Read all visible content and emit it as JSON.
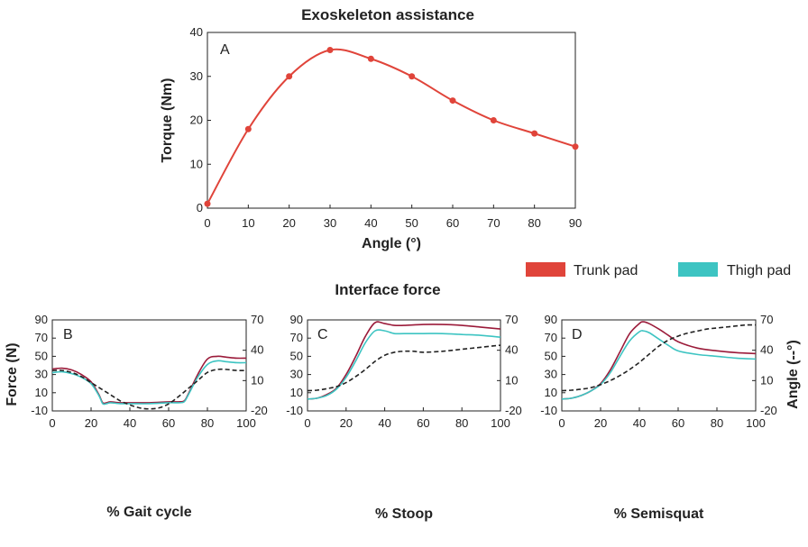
{
  "chart_data": [
    {
      "id": "A",
      "type": "line",
      "title": "Exoskeleton assistance",
      "panel_label": "A",
      "xlabel": "Angle (°)",
      "ylabel": "Torque (Nm)",
      "xlim": [
        0,
        90
      ],
      "ylim": [
        0,
        40
      ],
      "xticks": [
        0,
        10,
        20,
        30,
        40,
        50,
        60,
        70,
        80,
        90
      ],
      "yticks": [
        0,
        10,
        20,
        30,
        40
      ],
      "series": [
        {
          "color": "#e0443a",
          "x": [
            0,
            10,
            20,
            30,
            40,
            50,
            60,
            70,
            80,
            90
          ],
          "y": [
            1,
            18,
            30,
            36,
            34,
            30,
            24.5,
            20,
            17,
            14
          ]
        }
      ]
    },
    {
      "id": "B",
      "type": "line",
      "panel_label": "B",
      "xlabel": "% Gait cycle",
      "ylabel": "Force (N)",
      "xlim": [
        0,
        100
      ],
      "ylim": [
        -10,
        90
      ],
      "y2lim": [
        -20,
        70
      ],
      "xticks": [
        0,
        20,
        40,
        60,
        80,
        100
      ],
      "yticks": [
        -10,
        10,
        30,
        50,
        70,
        90
      ],
      "y2ticks": [
        -20,
        10,
        40,
        70
      ],
      "series": [
        {
          "color": "#9b1b3a",
          "x": [
            0,
            5,
            10,
            15,
            20,
            24,
            26,
            28,
            30,
            35,
            40,
            50,
            60,
            65,
            68,
            70,
            75,
            80,
            85,
            90,
            95,
            100
          ],
          "y": [
            36,
            37,
            35,
            30,
            22,
            8,
            -1,
            -1,
            0,
            -1,
            -1,
            -1,
            0,
            0,
            1,
            8,
            30,
            47,
            50,
            49,
            48,
            48
          ]
        },
        {
          "color": "#3dc4c2",
          "x": [
            0,
            5,
            10,
            15,
            20,
            24,
            26,
            28,
            30,
            35,
            40,
            50,
            60,
            65,
            68,
            70,
            75,
            80,
            85,
            90,
            95,
            100
          ],
          "y": [
            32,
            33,
            31,
            27,
            20,
            7,
            -2,
            -2,
            -1,
            -2,
            -2,
            -2,
            -1,
            -1,
            0,
            7,
            27,
            41,
            45,
            44,
            43,
            43
          ]
        },
        {
          "color": "#222222",
          "dashed": true,
          "axis": "right",
          "x": [
            0,
            5,
            10,
            15,
            20,
            25,
            30,
            35,
            40,
            45,
            50,
            55,
            60,
            65,
            70,
            75,
            80,
            85,
            90,
            95,
            100
          ],
          "y": [
            20,
            20,
            18,
            14,
            8,
            2,
            -4,
            -10,
            -14,
            -17,
            -18,
            -17,
            -13,
            -6,
            2,
            10,
            18,
            21,
            21,
            20,
            20
          ]
        }
      ]
    },
    {
      "id": "C",
      "type": "line",
      "panel_label": "C",
      "xlabel": "% Stoop",
      "xlim": [
        0,
        100
      ],
      "ylim": [
        -10,
        90
      ],
      "y2lim": [
        -20,
        70
      ],
      "xticks": [
        0,
        20,
        40,
        60,
        80,
        100
      ],
      "yticks": [
        -10,
        10,
        30,
        50,
        70,
        90
      ],
      "y2ticks": [
        -20,
        10,
        40,
        70
      ],
      "series": [
        {
          "color": "#9b1b3a",
          "x": [
            0,
            5,
            10,
            15,
            20,
            25,
            30,
            35,
            40,
            45,
            50,
            60,
            70,
            80,
            90,
            100
          ],
          "y": [
            3,
            4,
            8,
            15,
            30,
            50,
            72,
            87,
            86,
            84,
            84,
            85,
            85,
            84,
            82,
            80
          ]
        },
        {
          "color": "#3dc4c2",
          "x": [
            0,
            5,
            10,
            15,
            20,
            25,
            30,
            35,
            40,
            45,
            50,
            60,
            70,
            80,
            90,
            100
          ],
          "y": [
            3,
            4,
            7,
            14,
            27,
            45,
            65,
            78,
            78,
            75,
            75,
            75,
            75,
            74,
            73,
            71
          ]
        },
        {
          "color": "#222222",
          "dashed": true,
          "axis": "right",
          "x": [
            0,
            5,
            10,
            15,
            20,
            25,
            30,
            35,
            40,
            45,
            50,
            55,
            60,
            70,
            80,
            90,
            100
          ],
          "y": [
            0,
            0.5,
            2,
            4,
            8,
            14,
            21,
            29,
            35,
            38,
            39,
            39,
            38,
            39,
            41,
            43,
            45
          ]
        }
      ]
    },
    {
      "id": "D",
      "type": "line",
      "panel_label": "D",
      "xlabel": "% Semisquat",
      "ylabel": "Angle (--°)",
      "xlim": [
        0,
        100
      ],
      "ylim": [
        -10,
        90
      ],
      "y2lim": [
        -20,
        70
      ],
      "xticks": [
        0,
        20,
        40,
        60,
        80,
        100
      ],
      "yticks": [
        -10,
        10,
        30,
        50,
        70,
        90
      ],
      "y2ticks": [
        -20,
        10,
        40,
        70
      ],
      "series": [
        {
          "color": "#9b1b3a",
          "x": [
            0,
            5,
            10,
            15,
            20,
            25,
            30,
            35,
            40,
            42,
            45,
            50,
            55,
            60,
            70,
            80,
            90,
            100
          ],
          "y": [
            3,
            4,
            7,
            12,
            20,
            35,
            55,
            75,
            86,
            88,
            86,
            80,
            73,
            66,
            59,
            56,
            54,
            53
          ]
        },
        {
          "color": "#3dc4c2",
          "x": [
            0,
            5,
            10,
            15,
            20,
            25,
            30,
            35,
            40,
            42,
            45,
            50,
            55,
            60,
            70,
            80,
            90,
            100
          ],
          "y": [
            3,
            4,
            7,
            12,
            19,
            32,
            50,
            67,
            77,
            78,
            76,
            69,
            62,
            56,
            52,
            50,
            48,
            47
          ]
        },
        {
          "color": "#222222",
          "dashed": true,
          "axis": "right",
          "x": [
            0,
            5,
            10,
            15,
            20,
            25,
            30,
            35,
            40,
            45,
            50,
            55,
            60,
            65,
            70,
            75,
            80,
            85,
            90,
            95,
            100
          ],
          "y": [
            0,
            0.5,
            1.5,
            3,
            6,
            10,
            15,
            21,
            28,
            36,
            44,
            50,
            54,
            57,
            59,
            61,
            62,
            63,
            64,
            65,
            65
          ]
        }
      ]
    }
  ],
  "interface_force_title": "Interface force",
  "legend": [
    {
      "label": "Trunk pad",
      "color": "#e0443a"
    },
    {
      "label": "Thigh pad",
      "color": "#3dc4c2"
    }
  ]
}
